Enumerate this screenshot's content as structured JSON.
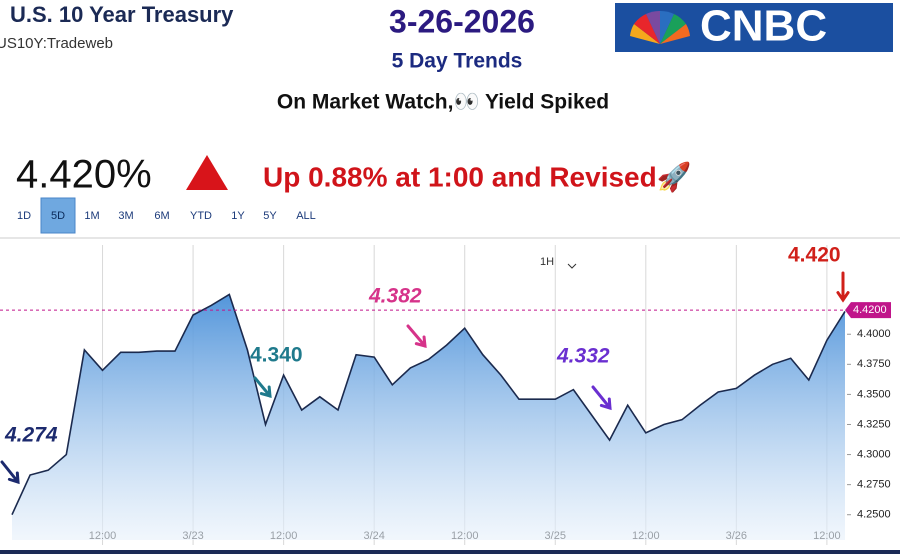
{
  "chart_data": {
    "type": "area",
    "title": "3-26-2026",
    "subtitle": "5 Day Trends",
    "headline": "On Market Watch,👀 Yield Spiked",
    "instrument": "U.S. 10 Year Treasury",
    "symbol": "US10Y:Tradeweb",
    "logo": "CNBC",
    "price": "4.420%",
    "change_note": "Up 0.88% at 1:00 and Revised🚀",
    "ranges": [
      "1D",
      "5D",
      "1M",
      "3M",
      "6M",
      "YTD",
      "1Y",
      "5Y",
      "ALL"
    ],
    "active_range": "5D",
    "interval": "1H",
    "categories": [
      null,
      null,
      null,
      null,
      null,
      "12:00",
      null,
      null,
      null,
      null,
      "3/23",
      null,
      null,
      null,
      null,
      "12:00",
      null,
      null,
      null,
      null,
      "3/24",
      null,
      null,
      null,
      null,
      "12:00",
      null,
      null,
      null,
      null,
      "3/25",
      null,
      null,
      null,
      null,
      "12:00",
      null,
      null,
      null,
      null,
      "3/26",
      null,
      null,
      null,
      null,
      "12:00",
      null
    ],
    "series": [
      {
        "name": "US10Y",
        "color": "#1b2a4e",
        "values": [
          4.25,
          4.283,
          4.287,
          4.3,
          4.387,
          4.37,
          4.385,
          4.385,
          4.386,
          4.386,
          4.416,
          4.424,
          4.433,
          4.387,
          4.325,
          4.366,
          4.337,
          4.348,
          4.337,
          4.383,
          4.381,
          4.358,
          4.372,
          4.379,
          4.391,
          4.405,
          4.383,
          4.366,
          4.346,
          4.346,
          4.346,
          4.354,
          4.333,
          4.312,
          4.341,
          4.318,
          4.325,
          4.329,
          4.341,
          4.352,
          4.355,
          4.366,
          4.375,
          4.38,
          4.362,
          4.395,
          4.419
        ]
      }
    ],
    "ylim": [
      4.229,
      4.47
    ],
    "yticks": [
      {
        "value": 4.25,
        "label": "4.2500"
      },
      {
        "value": 4.275,
        "label": "4.2750"
      },
      {
        "value": 4.3,
        "label": "4.3000"
      },
      {
        "value": 4.325,
        "label": "4.3250"
      },
      {
        "value": 4.35,
        "label": "4.3500"
      },
      {
        "value": 4.375,
        "label": "4.3750"
      },
      {
        "value": 4.4,
        "label": "4.4000"
      }
    ],
    "current_value": {
      "value": 4.42,
      "label": "4.4200",
      "color": "#c0158a"
    },
    "grid": true,
    "annotations": [
      {
        "text": "4.274",
        "color": "#1c2a6e"
      },
      {
        "text": "4.340",
        "color": "#1f7a8c"
      },
      {
        "text": "4.382",
        "color": "#d6338a"
      },
      {
        "text": "4.332",
        "color": "#6a2fd0"
      },
      {
        "text": "4.420",
        "color": "#d0201a"
      }
    ]
  }
}
